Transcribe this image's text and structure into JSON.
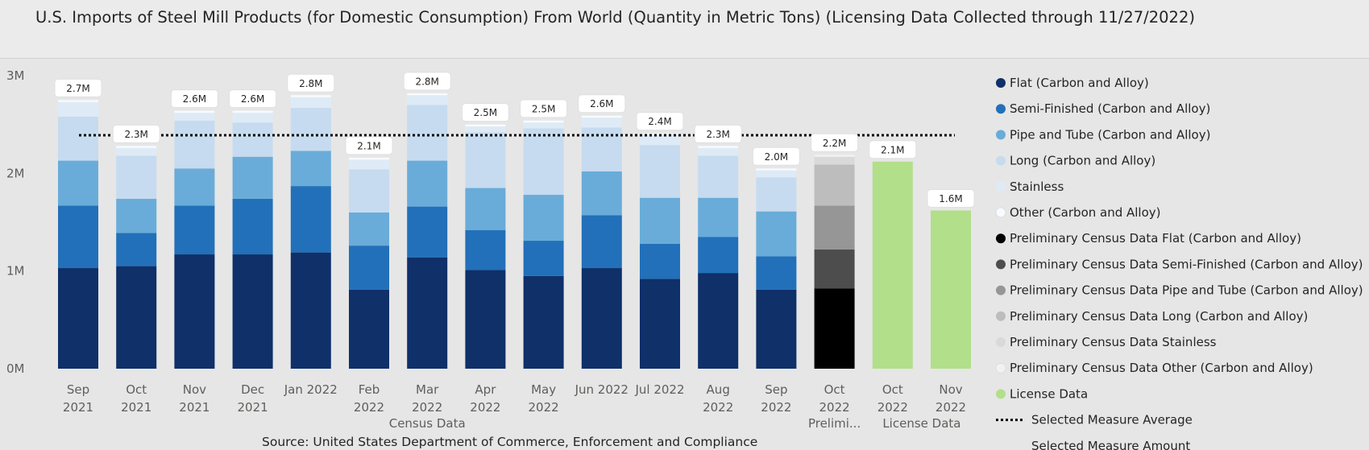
{
  "title": "U.S. Imports of Steel Mill Products (for Domestic Consumption) From World  (Quantity in Metric Tons) (Licensing Data Collected through 11/27/2022)",
  "source": "Source: United States Department of Commerce, Enforcement and Compliance",
  "chart_data": {
    "type": "bar",
    "stacked": true,
    "y_ticks": [
      "0M",
      "1M",
      "2M",
      "3M"
    ],
    "ylim": [
      0,
      3000000
    ],
    "grid": false,
    "legend_position": "right",
    "average_line": 2390000,
    "categories": [
      {
        "line1": "Sep",
        "line2": "2021"
      },
      {
        "line1": "Oct",
        "line2": "2021"
      },
      {
        "line1": "Nov",
        "line2": "2021"
      },
      {
        "line1": "Dec",
        "line2": "2021"
      },
      {
        "line1": "Jan 2022",
        "line2": ""
      },
      {
        "line1": "Feb",
        "line2": "2022"
      },
      {
        "line1": "Mar",
        "line2": "2022"
      },
      {
        "line1": "Apr",
        "line2": "2022"
      },
      {
        "line1": "May",
        "line2": "2022"
      },
      {
        "line1": "Jun 2022",
        "line2": ""
      },
      {
        "line1": "Jul 2022",
        "line2": ""
      },
      {
        "line1": "Aug",
        "line2": "2022"
      },
      {
        "line1": "Sep",
        "line2": "2022"
      },
      {
        "line1": "Oct",
        "line2": "2022"
      },
      {
        "line1": "Oct",
        "line2": "2022"
      },
      {
        "line1": "Nov",
        "line2": "2022"
      }
    ],
    "groups": [
      {
        "label": "Census Data",
        "center_category": 6
      },
      {
        "label": "Prelimi...",
        "center_category": 13
      },
      {
        "label": "License Data",
        "center_category": 14.5
      }
    ],
    "totals_labels": [
      "2.7M",
      "2.3M",
      "2.6M",
      "2.6M",
      "2.8M",
      "2.1M",
      "2.8M",
      "2.5M",
      "2.5M",
      "2.6M",
      "2.4M",
      "2.3M",
      "2.0M",
      "2.2M",
      "2.1M",
      "1.6M"
    ],
    "series": [
      {
        "name": "Flat (Carbon and Alloy)",
        "color": "#0f3069",
        "values": [
          1030000,
          1050000,
          1170000,
          1170000,
          1190000,
          810000,
          1140000,
          1010000,
          950000,
          1030000,
          920000,
          980000,
          810000,
          0,
          0,
          0
        ]
      },
      {
        "name": "Semi-Finished (Carbon and Alloy)",
        "color": "#2270b9",
        "values": [
          640000,
          340000,
          500000,
          570000,
          680000,
          450000,
          520000,
          410000,
          360000,
          540000,
          360000,
          370000,
          340000,
          0,
          0,
          0
        ]
      },
      {
        "name": "Pipe and Tube (Carbon and Alloy)",
        "color": "#69acd9",
        "values": [
          460000,
          350000,
          380000,
          430000,
          360000,
          340000,
          470000,
          430000,
          470000,
          450000,
          470000,
          400000,
          460000,
          0,
          0,
          0
        ]
      },
      {
        "name": "Long (Carbon and Alloy)",
        "color": "#c6dbef",
        "values": [
          450000,
          440000,
          490000,
          350000,
          440000,
          440000,
          570000,
          570000,
          680000,
          450000,
          540000,
          430000,
          350000,
          0,
          0,
          0
        ]
      },
      {
        "name": "Stainless",
        "color": "#deebf7",
        "values": [
          150000,
          80000,
          80000,
          100000,
          110000,
          100000,
          100000,
          60000,
          60000,
          100000,
          100000,
          80000,
          70000,
          0,
          0,
          0
        ]
      },
      {
        "name": "Other (Carbon and Alloy)",
        "color": "#f7fbff",
        "values": [
          20000,
          20000,
          20000,
          20000,
          20000,
          20000,
          20000,
          20000,
          20000,
          20000,
          20000,
          20000,
          20000,
          0,
          0,
          0
        ]
      },
      {
        "name": "Preliminary Census Data Flat (Carbon and Alloy)",
        "color": "#000000",
        "values": [
          0,
          0,
          0,
          0,
          0,
          0,
          0,
          0,
          0,
          0,
          0,
          0,
          0,
          820000,
          0,
          0
        ]
      },
      {
        "name": "Preliminary Census Data Semi-Finished (Carbon and Alloy)",
        "color": "#4d4d4d",
        "values": [
          0,
          0,
          0,
          0,
          0,
          0,
          0,
          0,
          0,
          0,
          0,
          0,
          0,
          400000,
          0,
          0
        ]
      },
      {
        "name": "Preliminary Census Data Pipe and Tube (Carbon and Alloy)",
        "color": "#969696",
        "values": [
          0,
          0,
          0,
          0,
          0,
          0,
          0,
          0,
          0,
          0,
          0,
          0,
          0,
          450000,
          0,
          0
        ]
      },
      {
        "name": "Preliminary Census Data Long (Carbon and Alloy)",
        "color": "#bdbdbd",
        "values": [
          0,
          0,
          0,
          0,
          0,
          0,
          0,
          0,
          0,
          0,
          0,
          0,
          0,
          420000,
          0,
          0
        ]
      },
      {
        "name": "Preliminary Census Data Stainless",
        "color": "#d9d9d9",
        "values": [
          0,
          0,
          0,
          0,
          0,
          0,
          0,
          0,
          0,
          0,
          0,
          0,
          0,
          80000,
          0,
          0
        ]
      },
      {
        "name": "Preliminary Census Data Other (Carbon and Alloy)",
        "color": "#f2f2f2",
        "values": [
          0,
          0,
          0,
          0,
          0,
          0,
          0,
          0,
          0,
          0,
          0,
          0,
          0,
          20000,
          0,
          0
        ]
      },
      {
        "name": "License Data",
        "color": "#b2df8a",
        "values": [
          0,
          0,
          0,
          0,
          0,
          0,
          0,
          0,
          0,
          0,
          0,
          0,
          0,
          0,
          2120000,
          1620000
        ]
      }
    ],
    "legend_extra": [
      {
        "name": "Selected Measure Average",
        "style": "dotted-line"
      },
      {
        "name": "Selected Measure Amount",
        "style": "none"
      }
    ]
  }
}
